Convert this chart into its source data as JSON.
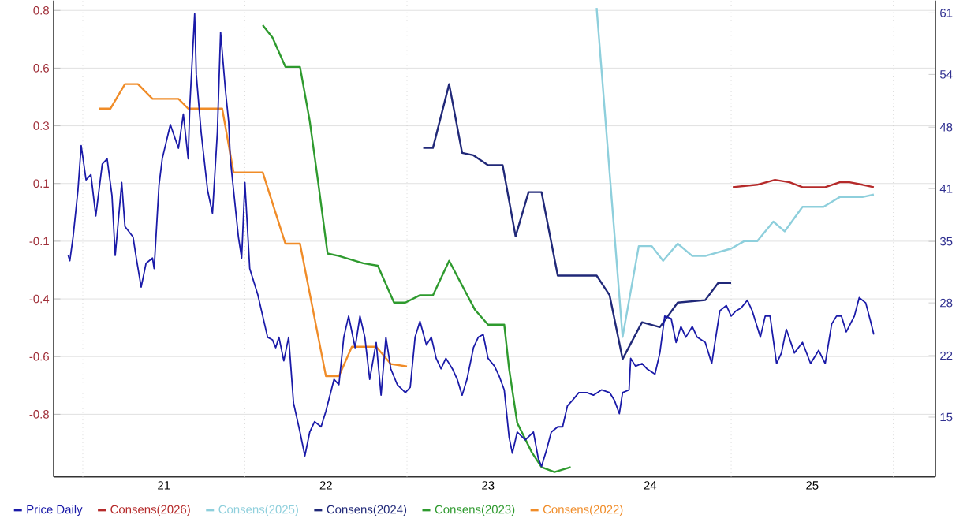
{
  "chart_data": {
    "type": "line",
    "legend": "bottom",
    "grid": true,
    "xlim": [
      20.32,
      25.76
    ],
    "xticks": [
      {
        "value": 20.5,
        "label": null
      },
      21,
      {
        "value": 21.5,
        "label": null
      },
      22,
      {
        "value": 22.5,
        "label": null
      },
      23,
      {
        "value": 23.5,
        "label": null
      },
      24,
      {
        "value": 24.5,
        "label": null
      },
      25,
      {
        "value": 25.5,
        "label": null
      }
    ],
    "ylim": [
      -1.1,
      0.84
    ],
    "yticks": [
      {
        "value": 0.8,
        "label": "0.8"
      },
      {
        "value": 0.565,
        "label": "0.6"
      },
      {
        "value": 0.33,
        "label": "0.3"
      },
      {
        "value": 0.095,
        "label": "0.1"
      },
      {
        "value": -0.14,
        "label": "-0.1"
      },
      {
        "value": -0.375,
        "label": "-0.4"
      },
      {
        "value": -0.61,
        "label": "-0.6"
      },
      {
        "value": -0.845,
        "label": "-0.8"
      }
    ],
    "y2lim": [
      8.2,
      62.4
    ],
    "y2ticks": [
      61,
      54,
      48,
      41,
      35,
      28,
      22,
      15
    ],
    "series": [
      {
        "name": "Price Daily",
        "color": "#1a1aa8",
        "axis": "y2",
        "x": [
          20.41,
          20.42,
          20.44,
          20.47,
          20.49,
          20.52,
          20.55,
          20.58,
          20.62,
          20.65,
          20.68,
          20.7,
          20.74,
          20.76,
          20.81,
          20.83,
          20.86,
          20.89,
          20.93,
          20.94,
          20.97,
          20.99,
          21.04,
          21.09,
          21.12,
          21.15,
          21.16,
          21.19,
          21.2,
          21.23,
          21.27,
          21.3,
          21.33,
          21.35,
          21.38,
          21.4,
          21.41,
          21.46,
          21.48,
          21.5,
          21.53,
          21.58,
          21.61,
          21.64,
          21.67,
          21.69,
          21.71,
          21.74,
          21.77,
          21.8,
          21.84,
          21.87,
          21.9,
          21.93,
          21.97,
          22.0,
          22.05,
          22.08,
          22.11,
          22.14,
          22.18,
          22.21,
          22.24,
          22.27,
          22.31,
          22.34,
          22.37,
          22.4,
          22.44,
          22.49,
          22.52,
          22.55,
          22.58,
          22.62,
          22.65,
          22.68,
          22.71,
          22.74,
          22.78,
          22.81,
          22.84,
          22.87,
          22.91,
          22.94,
          22.97,
          23.0,
          23.04,
          23.07,
          23.1,
          23.13,
          23.15,
          23.18,
          23.23,
          23.28,
          23.31,
          23.33,
          23.36,
          23.39,
          23.43,
          23.46,
          23.49,
          23.52,
          23.56,
          23.61,
          23.65,
          23.7,
          23.75,
          23.78,
          23.81,
          23.83,
          23.87,
          23.88,
          23.91,
          23.95,
          23.98,
          24.03,
          24.06,
          24.09,
          24.13,
          24.16,
          24.19,
          24.22,
          24.26,
          24.29,
          24.34,
          24.38,
          24.42,
          24.43,
          24.47,
          24.5,
          24.53,
          24.56,
          24.6,
          24.63,
          24.68,
          24.71,
          24.74,
          24.78,
          24.81,
          24.84,
          24.89,
          24.94,
          24.99,
          25.04,
          25.08,
          25.12,
          25.15,
          25.18,
          25.21,
          25.26,
          25.29,
          25.33,
          25.36,
          25.38
        ],
        "values": [
          33.4,
          32.8,
          35.5,
          40.8,
          45.9,
          42.0,
          42.6,
          37.9,
          43.8,
          44.4,
          40.2,
          33.4,
          41.7,
          36.7,
          35.5,
          33.1,
          29.8,
          32.5,
          33.1,
          31.9,
          41.4,
          44.4,
          48.3,
          45.6,
          49.5,
          44.4,
          50.4,
          60.9,
          54.0,
          47.4,
          40.8,
          38.2,
          47.4,
          58.8,
          52.2,
          48.6,
          44.4,
          35.5,
          33.1,
          41.7,
          31.9,
          28.9,
          26.5,
          24.1,
          23.8,
          22.9,
          24.1,
          21.4,
          24.1,
          16.6,
          13.3,
          10.6,
          13.3,
          14.5,
          13.9,
          15.7,
          19.3,
          18.7,
          24.1,
          26.5,
          22.9,
          26.5,
          24.1,
          19.3,
          23.5,
          17.5,
          24.1,
          20.5,
          18.7,
          17.8,
          18.4,
          24.1,
          25.9,
          23.2,
          24.1,
          21.7,
          20.5,
          21.7,
          20.5,
          19.3,
          17.5,
          19.3,
          22.9,
          24.1,
          24.4,
          21.7,
          20.8,
          19.6,
          18.1,
          12.7,
          10.9,
          13.3,
          12.4,
          13.3,
          10.3,
          9.4,
          11.2,
          13.3,
          13.9,
          13.9,
          16.3,
          16.9,
          17.8,
          17.8,
          17.5,
          18.1,
          17.8,
          16.9,
          15.4,
          17.8,
          18.1,
          21.7,
          20.8,
          21.1,
          20.5,
          19.9,
          22.3,
          26.5,
          26.2,
          23.5,
          25.3,
          24.1,
          25.3,
          24.1,
          23.5,
          21.1,
          25.9,
          27.1,
          27.7,
          26.5,
          27.1,
          27.4,
          28.3,
          27.1,
          24.1,
          26.5,
          26.5,
          21.1,
          22.3,
          25.0,
          22.3,
          23.5,
          21.1,
          22.6,
          21.1,
          25.6,
          26.5,
          26.5,
          24.7,
          26.5,
          28.6,
          28.0,
          25.9,
          24.4
        ]
      },
      {
        "name": "Consens(2026)",
        "color": "#b52a2a",
        "x": [
          24.51,
          24.66,
          24.77,
          24.86,
          24.94,
          25.08,
          25.17,
          25.23,
          25.31,
          25.38
        ],
        "values": [
          0.08,
          0.09,
          0.11,
          0.1,
          0.08,
          0.08,
          0.1,
          0.1,
          0.09,
          0.08
        ]
      },
      {
        "name": "Consens(2025)",
        "color": "#8ecfdc",
        "x": [
          23.67,
          23.83,
          23.93,
          24.01,
          24.08,
          24.17,
          24.26,
          24.34,
          24.5,
          24.58,
          24.66,
          24.76,
          24.83,
          24.94,
          25.07,
          25.17,
          25.31,
          25.38
        ],
        "values": [
          0.81,
          -0.53,
          -0.16,
          -0.16,
          -0.22,
          -0.15,
          -0.2,
          -0.2,
          -0.17,
          -0.14,
          -0.14,
          -0.06,
          -0.1,
          0.0,
          0.0,
          0.04,
          0.04,
          0.05
        ]
      },
      {
        "name": "Consens(2024)",
        "color": "#202878",
        "x": [
          22.6,
          22.66,
          22.76,
          22.84,
          22.91,
          23.0,
          23.09,
          23.17,
          23.25,
          23.33,
          23.43,
          23.67,
          23.75,
          23.83,
          23.95,
          24.06,
          24.17,
          24.34,
          24.42,
          24.5
        ],
        "values": [
          0.24,
          0.24,
          0.5,
          0.22,
          0.21,
          0.17,
          0.17,
          -0.12,
          0.06,
          0.06,
          -0.28,
          -0.28,
          -0.36,
          -0.62,
          -0.47,
          -0.49,
          -0.39,
          -0.38,
          -0.31,
          -0.31
        ]
      },
      {
        "name": "Consens(2023)",
        "color": "#2e9a2e",
        "x": [
          21.61,
          21.67,
          21.75,
          21.84,
          21.9,
          21.95,
          22.01,
          22.08,
          22.23,
          22.32,
          22.42,
          22.49,
          22.58,
          22.66,
          22.76,
          22.84,
          22.92,
          23.0,
          23.1,
          23.13,
          23.18,
          23.27,
          23.33,
          23.41,
          23.51
        ],
        "values": [
          0.74,
          0.69,
          0.57,
          0.57,
          0.35,
          0.11,
          -0.19,
          -0.2,
          -0.23,
          -0.24,
          -0.39,
          -0.39,
          -0.36,
          -0.36,
          -0.22,
          -0.32,
          -0.42,
          -0.48,
          -0.48,
          -0.66,
          -0.88,
          -1.0,
          -1.06,
          -1.08,
          -1.06
        ]
      },
      {
        "name": "Consens(2022)",
        "color": "#f08c28",
        "x": [
          20.6,
          20.67,
          20.76,
          20.84,
          20.93,
          21.09,
          21.15,
          21.36,
          21.43,
          21.61,
          21.75,
          21.84,
          22.0,
          22.08,
          22.16,
          22.31,
          22.4,
          22.5
        ],
        "values": [
          0.4,
          0.4,
          0.5,
          0.5,
          0.44,
          0.44,
          0.4,
          0.4,
          0.14,
          0.14,
          -0.15,
          -0.15,
          -0.69,
          -0.69,
          -0.57,
          -0.57,
          -0.64,
          -0.65
        ]
      }
    ]
  }
}
